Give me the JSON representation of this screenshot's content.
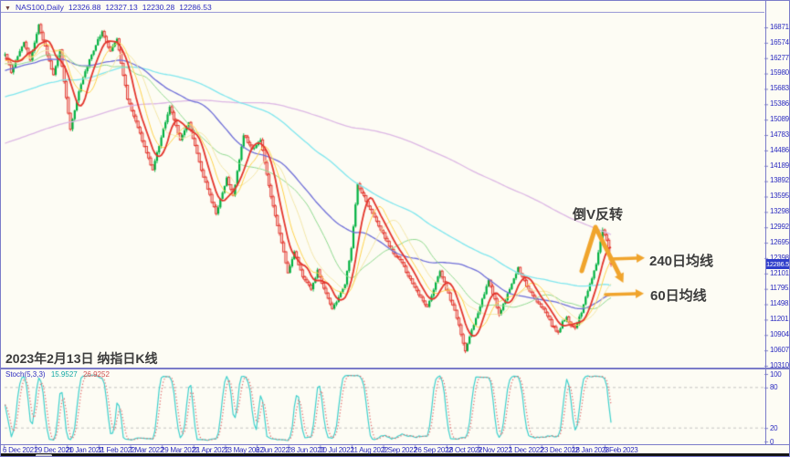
{
  "window": {
    "symbol_bar": {
      "collapse_icon_glyph": "▼",
      "title": "NAS100,Daily",
      "open": "12326.88",
      "high": "12327.13",
      "low": "12230.28",
      "close": "12286.53"
    },
    "price_tag": {
      "value": "12286.53",
      "bg": "#2f3ecb"
    }
  },
  "annotations": {
    "color": "#f0a42c",
    "inverted_v": {
      "label": "倒V反转",
      "points": [
        [
          636,
          296
        ],
        [
          651,
          248
        ],
        [
          677,
          300
        ]
      ]
    },
    "ma240": {
      "label": "240日均线",
      "arrow": [
        [
          667,
          283
        ],
        [
          696,
          282
        ]
      ]
    },
    "ma60": {
      "label": "60日均线",
      "arrow": [
        [
          662,
          322
        ],
        [
          695,
          321
        ]
      ]
    },
    "caption": "2023年2月13日 纳指日K线"
  },
  "chart_data": {
    "type": "candlestick",
    "symbol": "NAS100",
    "timeframe": "Daily",
    "ylim": [
      10310.5,
      16871.5
    ],
    "price_axis_ticks": [
      "16871.50",
      "16574.50",
      "16277.50",
      "15980.50",
      "15683.50",
      "15386.50",
      "15089.50",
      "14783.50",
      "14486.50",
      "14189.50",
      "13892.50",
      "13595.50",
      "13298.50",
      "12992.50",
      "12695.50",
      "12398.50",
      "12101.50",
      "11795.50",
      "11498.50",
      "11201.50",
      "10904.50",
      "10607.50",
      "10310.50"
    ],
    "date_axis_ticks": [
      "6 Dec 2021",
      "29 Dec 2021",
      "20 Jan 2022",
      "11 Feb 2022",
      "7 Mar 2022",
      "29 Mar 2022",
      "21 Apr 2022",
      "13 May 2022",
      "6 Jun 2022",
      "28 Jun 2022",
      "20 Jul 2022",
      "11 Aug 2022",
      "2 Sep 2022",
      "26 Sep 2022",
      "18 Oct 2022",
      "9 Nov 2022",
      "1 Dec 2022",
      "23 Dec 2022",
      "18 Jan 2023",
      "9 Feb 2023"
    ],
    "bars_visible": 288,
    "last_bar_ohlc": {
      "open": 12326.88,
      "high": 12327.13,
      "low": 12230.28,
      "close": 12286.53
    },
    "price_path_waypoints": [
      [
        0,
        16350
      ],
      [
        3,
        16020
      ],
      [
        9,
        16600
      ],
      [
        12,
        16250
      ],
      [
        16,
        16930
      ],
      [
        20,
        16350
      ],
      [
        23,
        15950
      ],
      [
        26,
        16450
      ],
      [
        31,
        14900
      ],
      [
        35,
        15650
      ],
      [
        41,
        16350
      ],
      [
        46,
        16800
      ],
      [
        50,
        16400
      ],
      [
        53,
        16650
      ],
      [
        58,
        15500
      ],
      [
        64,
        14800
      ],
      [
        70,
        14100
      ],
      [
        74,
        14750
      ],
      [
        78,
        15350
      ],
      [
        83,
        14700
      ],
      [
        87,
        15050
      ],
      [
        93,
        14100
      ],
      [
        100,
        13250
      ],
      [
        105,
        13950
      ],
      [
        108,
        13600
      ],
      [
        113,
        14800
      ],
      [
        117,
        14500
      ],
      [
        121,
        14700
      ],
      [
        125,
        13800
      ],
      [
        128,
        13200
      ],
      [
        131,
        12700
      ],
      [
        134,
        12100
      ],
      [
        137,
        12500
      ],
      [
        141,
        12050
      ],
      [
        145,
        11800
      ],
      [
        148,
        12150
      ],
      [
        152,
        11700
      ],
      [
        155,
        11400
      ],
      [
        158,
        11650
      ],
      [
        161,
        11900
      ],
      [
        164,
        12600
      ],
      [
        167,
        13850
      ],
      [
        170,
        13600
      ],
      [
        172,
        13400
      ],
      [
        176,
        13100
      ],
      [
        180,
        12800
      ],
      [
        184,
        12500
      ],
      [
        188,
        12300
      ],
      [
        193,
        11900
      ],
      [
        200,
        11450
      ],
      [
        203,
        11800
      ],
      [
        206,
        12150
      ],
      [
        209,
        11800
      ],
      [
        212,
        11500
      ],
      [
        215,
        11100
      ],
      [
        218,
        10600
      ],
      [
        221,
        11000
      ],
      [
        224,
        11350
      ],
      [
        229,
        11950
      ],
      [
        232,
        11600
      ],
      [
        234,
        11300
      ],
      [
        237,
        11600
      ],
      [
        240,
        11900
      ],
      [
        243,
        12200
      ],
      [
        246,
        11950
      ],
      [
        250,
        11650
      ],
      [
        253,
        11500
      ],
      [
        256,
        11350
      ],
      [
        259,
        11100
      ],
      [
        262,
        10950
      ],
      [
        264,
        11150
      ],
      [
        266,
        11250
      ],
      [
        268,
        11100
      ],
      [
        270,
        11050
      ],
      [
        273,
        11350
      ],
      [
        275,
        11650
      ],
      [
        278,
        12000
      ],
      [
        280,
        12300
      ],
      [
        283,
        12950
      ],
      [
        285,
        12750
      ],
      [
        287,
        12286.53
      ]
    ],
    "prehistory_waypoints": [
      [
        -240,
        12800
      ],
      [
        -200,
        13400
      ],
      [
        -160,
        14000
      ],
      [
        -120,
        14700
      ],
      [
        -90,
        15200
      ],
      [
        -70,
        14900
      ],
      [
        -50,
        15800
      ],
      [
        -30,
        16300
      ],
      [
        -20,
        16000
      ],
      [
        -10,
        16150
      ],
      [
        -1,
        16300
      ]
    ],
    "moving_averages": [
      {
        "period": 240,
        "color": "#dcb7e4",
        "width": 1.3,
        "name": "MA240"
      },
      {
        "period": 120,
        "color": "#7fe6ee",
        "width": 1.3,
        "name": "MA120"
      },
      {
        "period": 60,
        "color": "#6f6fd8",
        "width": 1.3,
        "name": "MA60"
      },
      {
        "period": 34,
        "color": "#8fd98f",
        "width": 1.0,
        "name": "MA34"
      },
      {
        "period": 21,
        "color": "#f3e6a8",
        "width": 1.0,
        "name": "MA21"
      },
      {
        "period": 13,
        "color": "#ffd24a",
        "width": 1.0,
        "name": "MA13"
      },
      {
        "period": 8,
        "color": "#e3342b",
        "width": 1.8,
        "name": "MA8"
      }
    ],
    "candle_colors": {
      "bull": "#00b140",
      "bear_border": "#e3342b",
      "bear_fill": "#f7ddd7"
    },
    "indicator": {
      "name": "Stoch(5,3,3)",
      "k_value": "15.9527",
      "d_value": "26.9252",
      "k_color": "#3fd0cc",
      "d_color": "#e06a6a",
      "levels": [
        80,
        20
      ],
      "scale_labels": [
        "100",
        "80",
        "20",
        "0"
      ]
    }
  }
}
